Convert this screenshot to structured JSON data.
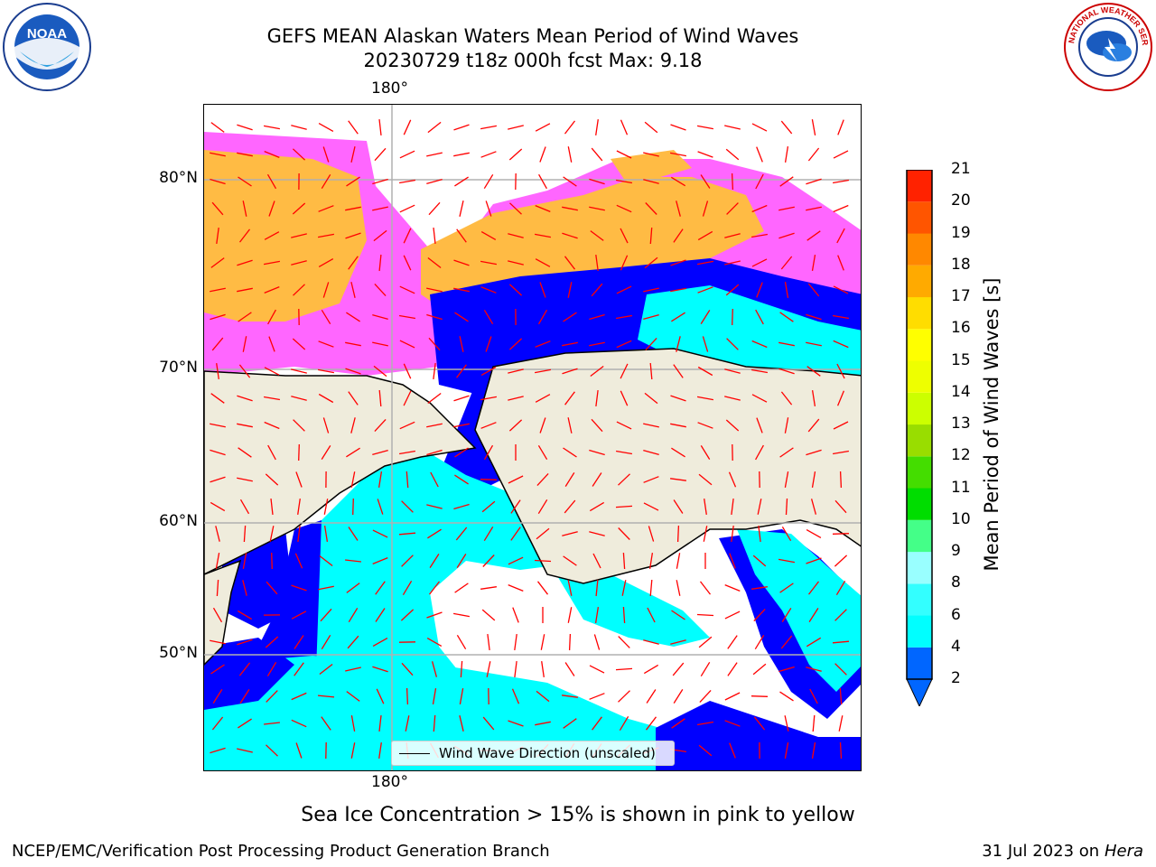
{
  "header": {
    "title_line1": "GEFS MEAN Alaskan Waters Mean Period of Wind Waves",
    "title_line2": "20230729 t18z 000h fcst   Max: 9.18"
  },
  "map": {
    "lat_labels": [
      "80°N",
      "70°N",
      "60°N",
      "50°N"
    ],
    "lon_label_top": "180°",
    "lon_label_bottom": "180°",
    "legend_label": "Wind Wave Direction (unscaled)",
    "colors": {
      "land": "#efecdc",
      "ocean_low": "#0000ff",
      "ocean_mid": "#00ffff",
      "ice_pink": "#ff66ff",
      "ice_orange": "#ffbb44",
      "arrow": "#ff0000"
    }
  },
  "colorbar": {
    "label": "Mean Period of Wind Waves [s]",
    "ticks": [
      "2",
      "4",
      "6",
      "8",
      "9",
      "10",
      "11",
      "12",
      "13",
      "14",
      "15",
      "16",
      "17",
      "18",
      "19",
      "20",
      "21"
    ],
    "colors": [
      "#0066ff",
      "#00ffff",
      "#33ffff",
      "#99ffff",
      "#44ff88",
      "#00dd00",
      "#44dd00",
      "#99dd00",
      "#ccff00",
      "#eeff00",
      "#ffff00",
      "#ffdd00",
      "#ffaa00",
      "#ff8800",
      "#ff5500",
      "#ff2200",
      "#ff0000"
    ]
  },
  "caption": "Sea Ice Concentration > 15% is shown in pink to yellow",
  "footer": {
    "left": "NCEP/EMC/Verification Post Processing Product Generation Branch",
    "right_date": "31 Jul 2023 on",
    "right_host": "Hera"
  },
  "logos": {
    "noaa_text": "NOAA",
    "nws_text": "NATIONAL WEATHER SERVICE"
  }
}
